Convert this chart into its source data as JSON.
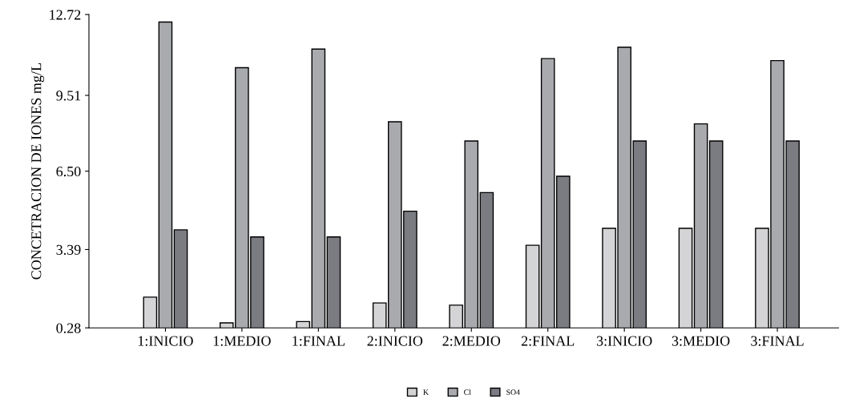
{
  "chart_data": {
    "type": "bar",
    "ylabel": "CONCETRACION DE IONES mg/L",
    "categories": [
      "1:INICIO",
      "1:MEDIO",
      "1:FINAL",
      "2:INICIO",
      "2:MEDIO",
      "2:FINAL",
      "3:INICIO",
      "3:MEDIO",
      "3:FINAL"
    ],
    "series": [
      {
        "name": "K",
        "color": "#d4d4d6",
        "values": [
          1.5,
          0.48,
          0.53,
          1.27,
          1.18,
          3.56,
          4.23,
          4.23,
          4.23
        ]
      },
      {
        "name": "Cl",
        "color": "#a9aaae",
        "values": [
          12.42,
          10.61,
          11.35,
          8.46,
          7.7,
          10.97,
          11.42,
          8.38,
          10.89
        ]
      },
      {
        "name": "SO4",
        "color": "#7b7c82",
        "values": [
          4.17,
          3.89,
          3.89,
          4.91,
          5.65,
          6.3,
          7.7,
          7.7,
          7.7
        ]
      }
    ],
    "ylim": [
      0.28,
      12.72
    ],
    "yticks": [
      {
        "value": 0.28,
        "label": "0.28"
      },
      {
        "value": 3.39,
        "label": "3.39"
      },
      {
        "value": 6.5,
        "label": "6.50"
      },
      {
        "value": 9.51,
        "label": "9.51"
      },
      {
        "value": 12.72,
        "label": "12.72"
      }
    ],
    "grid": false,
    "legend": "bottom"
  }
}
